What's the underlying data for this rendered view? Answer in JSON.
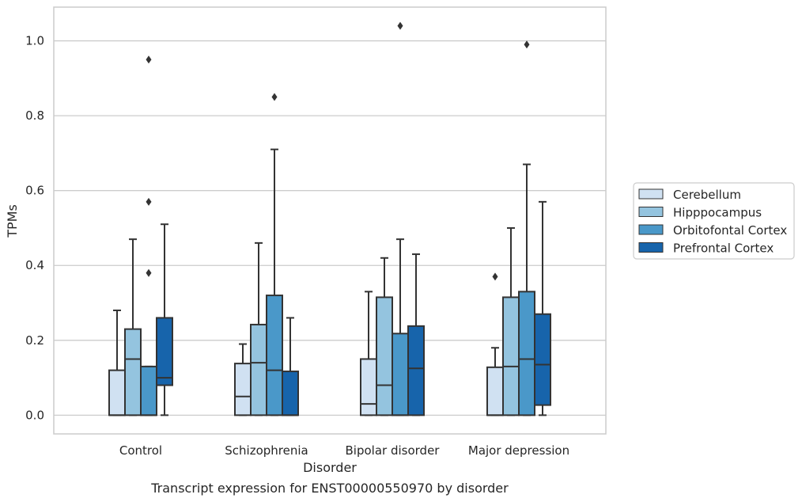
{
  "chart_data": {
    "type": "boxplot",
    "title": "",
    "caption": "Transcript expression for ENST00000550970 by disorder",
    "xlabel": "Disorder",
    "ylabel": "TPMs",
    "ylim": [
      -0.05,
      1.09
    ],
    "yticks": [
      0.0,
      0.2,
      0.4,
      0.6,
      0.8,
      1.0
    ],
    "ytick_labels": [
      "0.0",
      "0.2",
      "0.4",
      "0.6",
      "0.8",
      "1.0"
    ],
    "categories": [
      "Control",
      "Schizophrenia",
      "Bipolar disorder",
      "Major depression"
    ],
    "grid": "horizontal",
    "legend_position": "right",
    "edge_color": "#333333",
    "series": [
      {
        "name": "Cerebellum",
        "color": "#d0e1f2",
        "boxes": [
          {
            "whislo": 0.0,
            "q1": 0.0,
            "med": 0.0,
            "q3": 0.12,
            "whishi": 0.28,
            "fliers": []
          },
          {
            "whislo": 0.0,
            "q1": 0.0,
            "med": 0.05,
            "q3": 0.138,
            "whishi": 0.19,
            "fliers": []
          },
          {
            "whislo": 0.0,
            "q1": 0.0,
            "med": 0.03,
            "q3": 0.15,
            "whishi": 0.33,
            "fliers": []
          },
          {
            "whislo": 0.0,
            "q1": 0.0,
            "med": 0.0,
            "q3": 0.128,
            "whishi": 0.18,
            "fliers": [
              0.37
            ]
          }
        ]
      },
      {
        "name": "Hipppocampus",
        "color": "#94c4df",
        "boxes": [
          {
            "whislo": 0.0,
            "q1": 0.0,
            "med": 0.15,
            "q3": 0.23,
            "whishi": 0.47,
            "fliers": []
          },
          {
            "whislo": 0.0,
            "q1": 0.0,
            "med": 0.14,
            "q3": 0.242,
            "whishi": 0.46,
            "fliers": []
          },
          {
            "whislo": 0.0,
            "q1": 0.0,
            "med": 0.08,
            "q3": 0.315,
            "whishi": 0.42,
            "fliers": []
          },
          {
            "whislo": 0.0,
            "q1": 0.0,
            "med": 0.13,
            "q3": 0.315,
            "whishi": 0.5,
            "fliers": []
          }
        ]
      },
      {
        "name": "Orbitofontal Cortex",
        "color": "#4a98c9",
        "boxes": [
          {
            "whislo": 0.0,
            "q1": 0.0,
            "med": 0.0,
            "q3": 0.13,
            "whishi": 0.13,
            "fliers": [
              0.38,
              0.57,
              0.95
            ]
          },
          {
            "whislo": 0.0,
            "q1": 0.0,
            "med": 0.12,
            "q3": 0.32,
            "whishi": 0.71,
            "fliers": [
              0.85
            ]
          },
          {
            "whislo": 0.0,
            "q1": 0.0,
            "med": 0.0,
            "q3": 0.218,
            "whishi": 0.47,
            "fliers": [
              1.04
            ]
          },
          {
            "whislo": 0.0,
            "q1": 0.0,
            "med": 0.15,
            "q3": 0.33,
            "whishi": 0.67,
            "fliers": [
              0.99
            ]
          }
        ]
      },
      {
        "name": "Prefrontal Cortex",
        "color": "#1764ab",
        "boxes": [
          {
            "whislo": 0.0,
            "q1": 0.08,
            "med": 0.1,
            "q3": 0.26,
            "whishi": 0.51,
            "fliers": []
          },
          {
            "whislo": 0.0,
            "q1": 0.0,
            "med": 0.0,
            "q3": 0.117,
            "whishi": 0.26,
            "fliers": []
          },
          {
            "whislo": 0.0,
            "q1": 0.0,
            "med": 0.125,
            "q3": 0.238,
            "whishi": 0.43,
            "fliers": []
          },
          {
            "whislo": 0.0,
            "q1": 0.027,
            "med": 0.135,
            "q3": 0.27,
            "whishi": 0.57,
            "fliers": []
          }
        ]
      }
    ]
  }
}
